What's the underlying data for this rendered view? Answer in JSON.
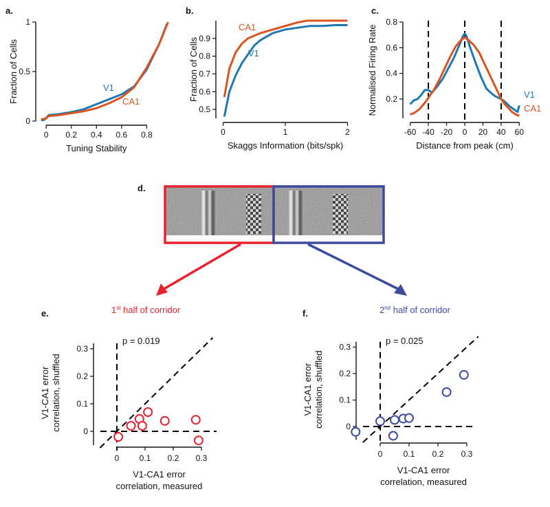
{
  "colors": {
    "v1": "#1f77b4",
    "ca1": "#d9541e",
    "red_box": "#e8222e",
    "blue_box": "#3c4aa0",
    "axis": "#111111"
  },
  "chart_data": [
    {
      "id": "a",
      "type": "line",
      "panel_label": "a.",
      "xlabel": "Tuning Stability",
      "ylabel": "Fraction of Cells",
      "xlim": [
        -0.05,
        1.0
      ],
      "ylim": [
        0,
        1
      ],
      "xticks": [
        0,
        0.2,
        0.4,
        0.6,
        0.8
      ],
      "xtick_labels": [
        "0",
        "0.2",
        "0.4",
        "0.6",
        "0.8"
      ],
      "yticks": [
        0,
        0.5,
        1
      ],
      "ytick_labels": [
        "0",
        "0.5",
        "1"
      ],
      "series": [
        {
          "name": "V1",
          "color_key": "v1",
          "x": [
            -0.04,
            -0.02,
            0.0,
            0.02,
            0.1,
            0.2,
            0.3,
            0.36,
            0.4,
            0.5,
            0.6,
            0.7,
            0.8,
            0.9,
            0.96
          ],
          "y": [
            0.01,
            0.01,
            0.03,
            0.06,
            0.07,
            0.09,
            0.12,
            0.15,
            0.17,
            0.22,
            0.27,
            0.35,
            0.52,
            0.78,
            0.98
          ]
        },
        {
          "name": "CA1",
          "color_key": "ca1",
          "x": [
            -0.04,
            -0.02,
            0.0,
            0.02,
            0.1,
            0.2,
            0.3,
            0.4,
            0.5,
            0.6,
            0.7,
            0.8,
            0.9,
            0.97
          ],
          "y": [
            0.02,
            0.02,
            0.03,
            0.05,
            0.06,
            0.08,
            0.1,
            0.13,
            0.18,
            0.24,
            0.34,
            0.54,
            0.78,
            1.0
          ]
        }
      ],
      "annotations": [
        "V1",
        "CA1"
      ]
    },
    {
      "id": "b",
      "type": "line",
      "panel_label": "b.",
      "xlabel": "Skaggs Information (bits/spk)",
      "ylabel": "Fraction of Cells",
      "xlim": [
        -0.05,
        2.05
      ],
      "ylim": [
        0.45,
        1.0
      ],
      "xticks": [
        0,
        1,
        2
      ],
      "xtick_labels": [
        "0",
        "1",
        "2"
      ],
      "yticks": [
        0.5,
        0.6,
        0.7,
        0.8,
        0.9
      ],
      "ytick_labels": [
        "0.5",
        "0.6",
        "0.7",
        "0.8",
        "0.9"
      ],
      "series": [
        {
          "name": "CA1",
          "color_key": "ca1",
          "x": [
            0.02,
            0.1,
            0.2,
            0.3,
            0.4,
            0.6,
            0.8,
            1.0,
            1.2,
            1.35,
            1.6,
            2.0
          ],
          "y": [
            0.57,
            0.73,
            0.82,
            0.87,
            0.9,
            0.93,
            0.95,
            0.97,
            0.99,
            1.0,
            1.0,
            1.0
          ]
        },
        {
          "name": "V1",
          "color_key": "v1",
          "x": [
            0.02,
            0.1,
            0.2,
            0.3,
            0.4,
            0.5,
            0.6,
            0.8,
            1.0,
            1.2,
            1.4,
            1.6,
            1.8,
            2.0
          ],
          "y": [
            0.46,
            0.6,
            0.69,
            0.76,
            0.81,
            0.86,
            0.89,
            0.93,
            0.95,
            0.96,
            0.97,
            0.97,
            0.975,
            0.975
          ]
        }
      ],
      "annotations": [
        "CA1",
        "V1"
      ]
    },
    {
      "id": "c",
      "type": "line",
      "panel_label": "c.",
      "xlabel": "Distance from peak (cm)",
      "ylabel": "Normalised Firing Rate",
      "xlim": [
        -62,
        62
      ],
      "ylim": [
        0.05,
        0.8
      ],
      "xticks": [
        -60,
        -40,
        -20,
        0,
        20,
        40,
        60
      ],
      "xtick_labels": [
        "-60",
        "-40",
        "-20",
        "0",
        "20",
        "40",
        "60"
      ],
      "yticks": [
        0.2,
        0.4,
        0.6,
        0.8
      ],
      "ytick_labels": [
        "0.2",
        "0.4",
        "0.6",
        "0.8"
      ],
      "vlines": [
        -40,
        0,
        40
      ],
      "series": [
        {
          "name": "V1",
          "color_key": "v1",
          "x": [
            -60,
            -56,
            -52,
            -48,
            -44,
            -40,
            -36,
            -30,
            -24,
            -18,
            -12,
            -6,
            -2,
            0,
            2,
            6,
            12,
            18,
            24,
            30,
            34,
            40,
            44,
            50,
            54,
            58,
            60
          ],
          "y": [
            0.16,
            0.19,
            0.2,
            0.23,
            0.27,
            0.27,
            0.25,
            0.3,
            0.36,
            0.44,
            0.52,
            0.62,
            0.69,
            0.71,
            0.69,
            0.6,
            0.48,
            0.37,
            0.28,
            0.24,
            0.22,
            0.2,
            0.18,
            0.14,
            0.12,
            0.1,
            0.15
          ]
        },
        {
          "name": "CA1",
          "color_key": "ca1",
          "x": [
            -60,
            -56,
            -50,
            -44,
            -40,
            -34,
            -28,
            -22,
            -16,
            -10,
            -4,
            0,
            4,
            10,
            16,
            22,
            28,
            34,
            40,
            44,
            48,
            52,
            56,
            60
          ],
          "y": [
            0.08,
            0.09,
            0.12,
            0.17,
            0.21,
            0.27,
            0.35,
            0.44,
            0.53,
            0.61,
            0.66,
            0.68,
            0.66,
            0.62,
            0.56,
            0.47,
            0.38,
            0.29,
            0.2,
            0.16,
            0.13,
            0.1,
            0.08,
            0.07
          ]
        }
      ],
      "annotations": [
        "V1",
        "CA1"
      ]
    },
    {
      "id": "e",
      "type": "scatter",
      "panel_label": "e.",
      "caption": "1st half of corridor",
      "caption_main": "1",
      "caption_sup": "st",
      "caption_rest": " half of corridor",
      "p_text": "p = 0.019",
      "xlabel_line1": "V1-CA1 error",
      "xlabel_line2": "correlation, measured",
      "ylabel_line1": "V1-CA1 error",
      "ylabel_line2": "correlation, shuffled",
      "xlim": [
        -0.1,
        0.34
      ],
      "ylim": [
        -0.08,
        0.34
      ],
      "xticks": [
        0,
        0.1,
        0.2,
        0.3
      ],
      "xtick_labels": [
        "0",
        "0.1",
        "0.2",
        "0.3"
      ],
      "yticks": [
        0,
        0.1,
        0.2,
        0.3
      ],
      "ytick_labels": [
        "0",
        "0.1",
        "0.2",
        "0.3"
      ],
      "marker_color_key": "red_box",
      "points": [
        {
          "x": 0.005,
          "y": -0.02
        },
        {
          "x": 0.05,
          "y": 0.02
        },
        {
          "x": 0.08,
          "y": 0.045
        },
        {
          "x": 0.09,
          "y": 0.02
        },
        {
          "x": 0.11,
          "y": 0.07
        },
        {
          "x": 0.17,
          "y": 0.038
        },
        {
          "x": 0.28,
          "y": 0.042
        },
        {
          "x": 0.29,
          "y": -0.033
        }
      ]
    },
    {
      "id": "f",
      "type": "scatter",
      "panel_label": "f.",
      "caption": "2nd half of corridor",
      "caption_main": "2",
      "caption_sup": "nd",
      "caption_rest": " half of corridor",
      "p_text": "p = 0.025",
      "xlabel_line1": "V1-CA1 error",
      "xlabel_line2": "correlation, measured",
      "ylabel_line1": "V1-CA1 error",
      "ylabel_line2": "correlation, shuffled",
      "xlim": [
        -0.1,
        0.34
      ],
      "ylim": [
        -0.08,
        0.34
      ],
      "xticks": [
        0,
        0.1,
        0.2,
        0.3
      ],
      "xtick_labels": [
        "0",
        "0.1",
        "0.2",
        "0.3"
      ],
      "yticks": [
        0,
        0.1,
        0.2,
        0.3
      ],
      "ytick_labels": [
        "0",
        "0.1",
        "0.2",
        "0.3"
      ],
      "marker_color_key": "blue_box",
      "points": [
        {
          "x": -0.085,
          "y": -0.02
        },
        {
          "x": 0.0,
          "y": 0.02
        },
        {
          "x": 0.045,
          "y": -0.035
        },
        {
          "x": 0.05,
          "y": 0.025
        },
        {
          "x": 0.08,
          "y": 0.03
        },
        {
          "x": 0.1,
          "y": 0.032
        },
        {
          "x": 0.23,
          "y": 0.13
        },
        {
          "x": 0.29,
          "y": 0.195
        }
      ]
    }
  ],
  "corridor": {
    "panel_label": "d."
  }
}
